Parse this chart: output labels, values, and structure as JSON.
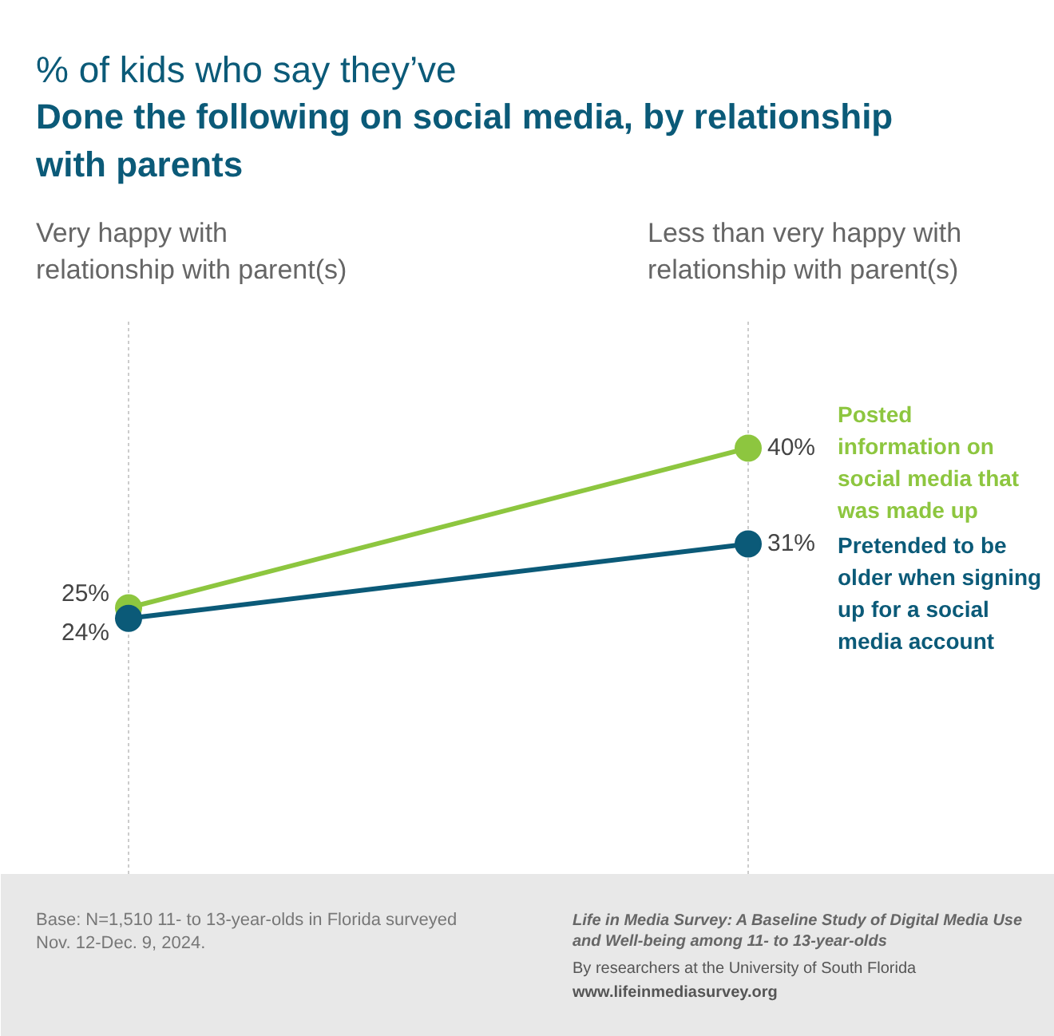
{
  "chart_data": {
    "type": "line",
    "subtitle": "% of kids who say they’ve",
    "title": "Done the following on social media, by relationship with parents",
    "categories": [
      "Very happy with\nrelationship with parent(s)",
      "Less than very happy with\nrelationship with parent(s)"
    ],
    "series": [
      {
        "name": "Posted\ninformation on\nsocial media that\nwas made up",
        "color": "#8dc63f",
        "values": [
          25,
          40
        ],
        "value_labels": [
          "25%",
          "40%"
        ]
      },
      {
        "name": "Pretended to be\nolder when signing\nup for a social\nmedia account",
        "color": "#0b5a78",
        "values": [
          24,
          31
        ],
        "value_labels": [
          "24%",
          "31%"
        ]
      }
    ],
    "marker": "circle",
    "data_labels": true,
    "tick_labels": false,
    "grid": false,
    "ref_lines": [
      {
        "axis": "x",
        "value": "Very happy with\nrelationship with parent(s)",
        "color": "#cccccc",
        "line_style": "dashed"
      },
      {
        "axis": "x",
        "value": "Less than very happy with\nrelationship with parent(s)",
        "color": "#cccccc",
        "line_style": "dashed"
      }
    ],
    "annotations": [
      "Base: N=1,510 11- to 13-year-olds in Florida surveyed\nNov. 12-Dec. 9, 2024.",
      "Life in Media Survey: A Baseline Study of Digital Media Use\nand Well-being among 11- to 13-year-olds",
      "By researchers at the University of South Florida",
      "www.lifeinmediasurvey.org"
    ]
  }
}
